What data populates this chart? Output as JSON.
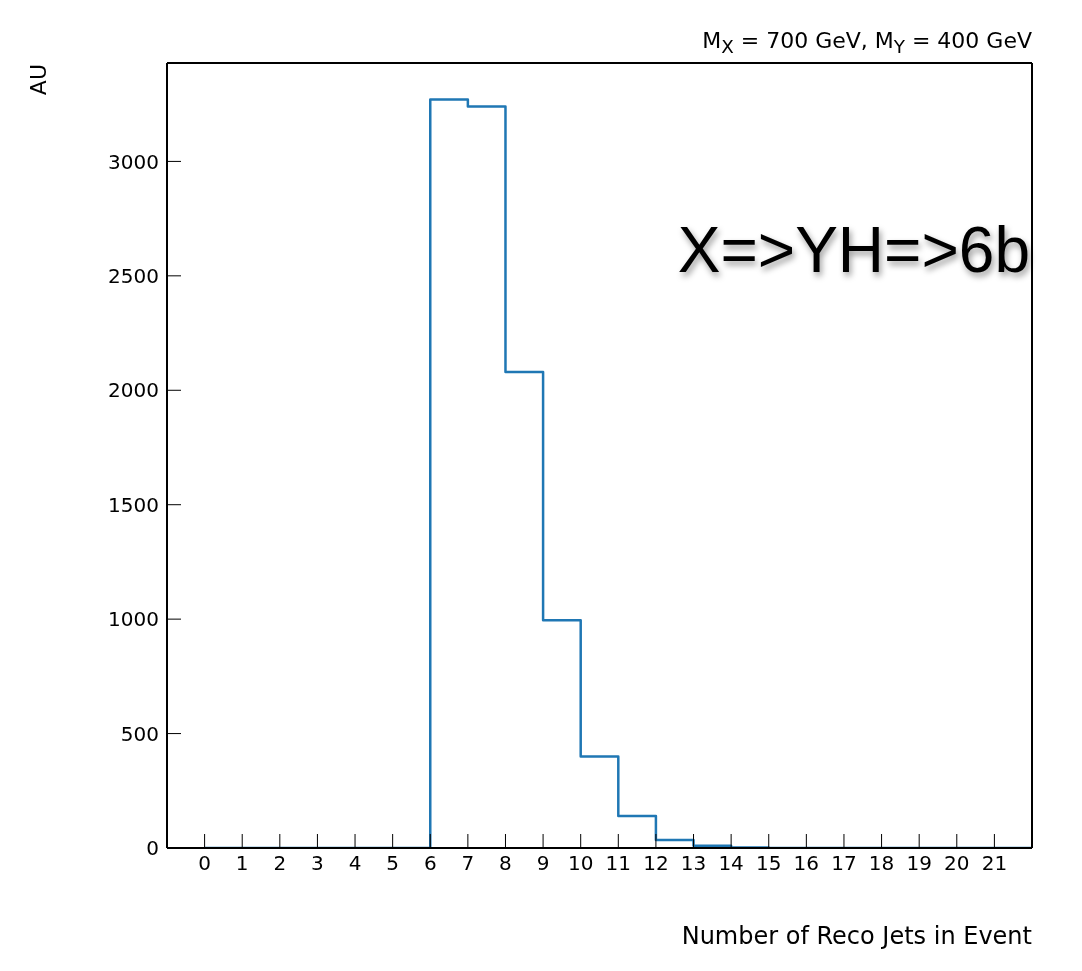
{
  "chart_data": {
    "type": "histogram",
    "title": "M$_{X}$ =  700 GeV, M$_{Y}$ =  400 GeV",
    "annotations": [
      "X=>YH=>6b"
    ],
    "xlabel": "Number of Reco Jets in Event",
    "ylabel": "AU",
    "bins": [
      0,
      1,
      2,
      3,
      4,
      5,
      6,
      7,
      8,
      9,
      10,
      11,
      12,
      13,
      14,
      15,
      16,
      17,
      18,
      19,
      20,
      21,
      22
    ],
    "values": [
      0,
      0,
      0,
      0,
      0,
      0,
      3270,
      3240,
      2080,
      995,
      400,
      140,
      35,
      10,
      2,
      0,
      0,
      0,
      0,
      0,
      0,
      0
    ],
    "color": "#1f77b4",
    "xlim": [
      -1,
      22
    ],
    "xticks": [
      0,
      1,
      2,
      3,
      4,
      5,
      6,
      7,
      8,
      9,
      10,
      11,
      12,
      13,
      14,
      15,
      16,
      17,
      18,
      19,
      20,
      21
    ],
    "ylim": [
      0,
      3430
    ],
    "yticks": [
      0,
      500,
      1000,
      1500,
      2000,
      2500,
      3000
    ],
    "grid": false
  }
}
